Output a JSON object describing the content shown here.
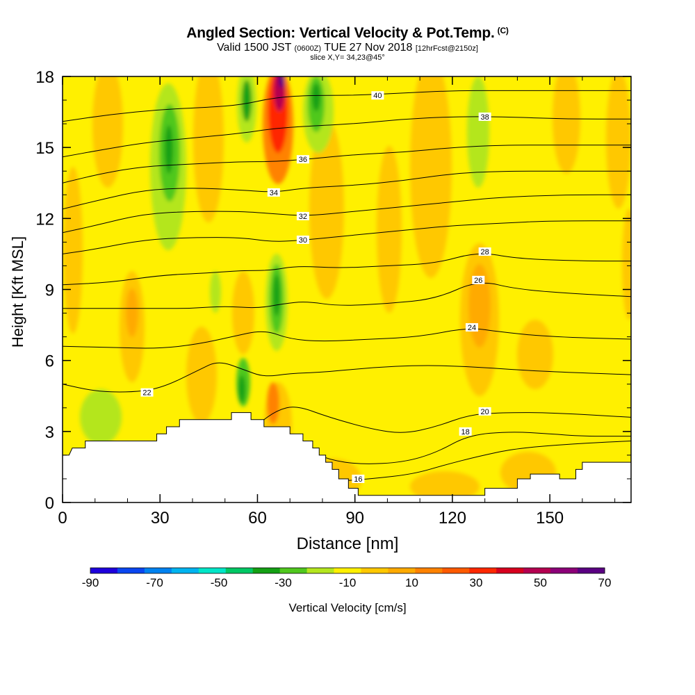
{
  "header": {
    "title": "Angled Section: Vertical Velocity & Pot.Temp.",
    "title_unit": "(C)",
    "valid_prefix": "Valid 1500 JST",
    "valid_zulu": "(0600Z)",
    "valid_date": "TUE 27 Nov 2018",
    "forecast": "[12hrFcst@2150z]",
    "slice": "slice X,Y= 34,23@45°"
  },
  "chart_data": {
    "type": "heatmap",
    "xlabel": "Distance [nm]",
    "ylabel": "Height [Kft MSL]",
    "xlim": [
      0,
      175
    ],
    "ylim": [
      0,
      18
    ],
    "x_ticks": [
      0,
      30,
      60,
      90,
      120,
      150
    ],
    "y_ticks": [
      0,
      3,
      6,
      9,
      12,
      15,
      18
    ],
    "terrain_kft": [
      [
        0,
        2
      ],
      [
        2,
        2
      ],
      [
        3,
        2.3
      ],
      [
        7,
        2.3
      ],
      [
        7,
        2.6
      ],
      [
        29,
        2.6
      ],
      [
        29,
        2.9
      ],
      [
        32,
        2.9
      ],
      [
        32,
        3.2
      ],
      [
        36,
        3.2
      ],
      [
        36,
        3.5
      ],
      [
        41,
        3.5
      ],
      [
        41,
        3.5
      ],
      [
        52,
        3.5
      ],
      [
        52,
        3.8
      ],
      [
        58,
        3.8
      ],
      [
        58,
        3.5
      ],
      [
        62,
        3.5
      ],
      [
        62,
        3.2
      ],
      [
        70,
        3.2
      ],
      [
        70,
        2.9
      ],
      [
        74,
        2.9
      ],
      [
        74,
        2.6
      ],
      [
        77,
        2.6
      ],
      [
        77,
        2.3
      ],
      [
        79,
        2.3
      ],
      [
        79,
        2
      ],
      [
        81,
        2
      ],
      [
        81,
        1.7
      ],
      [
        83,
        1.7
      ],
      [
        83,
        1.4
      ],
      [
        85,
        1.4
      ],
      [
        85,
        1
      ],
      [
        88,
        1
      ],
      [
        88,
        0.6
      ],
      [
        91,
        0.6
      ],
      [
        91,
        0.3
      ],
      [
        108,
        0.3
      ],
      [
        108,
        0.3
      ],
      [
        130,
        0.3
      ],
      [
        130,
        0.6
      ],
      [
        140,
        0.6
      ],
      [
        140,
        1
      ],
      [
        144,
        1
      ],
      [
        144,
        1.2
      ],
      [
        153,
        1.2
      ],
      [
        153,
        1
      ],
      [
        158,
        1
      ],
      [
        158,
        1.4
      ],
      [
        160,
        1.4
      ],
      [
        160,
        1.7
      ],
      [
        175,
        1.7
      ]
    ],
    "colorbar": {
      "label": "Vertical Velocity [cm/s]",
      "tick_labels": [
        "-90",
        "-70",
        "-50",
        "-30",
        "-10",
        "10",
        "30",
        "50",
        "70"
      ],
      "colors": [
        "#1e00dc",
        "#0a46f0",
        "#0082f0",
        "#00b4f0",
        "#00e6c8",
        "#00c864",
        "#14a014",
        "#50c81e",
        "#b4e61e",
        "#fff000",
        "#ffc800",
        "#ffaa00",
        "#ff8200",
        "#ff5a00",
        "#ff2800",
        "#d7001e",
        "#b40050",
        "#8c0078",
        "#5a0082"
      ]
    },
    "theta_contours": [
      {
        "label": "16",
        "pts": [
          [
            78,
            0.9
          ],
          [
            85,
            0.9
          ],
          [
            95,
            1.0
          ],
          [
            108,
            1.2
          ],
          [
            118,
            1.6
          ],
          [
            128,
            1.95
          ],
          [
            140,
            2.3
          ],
          [
            160,
            2.5
          ],
          [
            175,
            2.6
          ]
        ],
        "label_at": [
          91,
          1.0
        ]
      },
      {
        "label": "18",
        "pts": [
          [
            62,
            2.7
          ],
          [
            68,
            2.5
          ],
          [
            74,
            2.3
          ],
          [
            82,
            1.8
          ],
          [
            92,
            1.6
          ],
          [
            105,
            1.7
          ],
          [
            115,
            2.1
          ],
          [
            125,
            2.85
          ],
          [
            138,
            3.0
          ],
          [
            150,
            2.9
          ],
          [
            160,
            2.8
          ],
          [
            175,
            2.8
          ]
        ],
        "label_at": [
          124,
          3.0
        ]
      },
      {
        "label": "20",
        "pts": [
          [
            60,
            3.3
          ],
          [
            66,
            3.9
          ],
          [
            72,
            4.1
          ],
          [
            82,
            3.6
          ],
          [
            95,
            3.1
          ],
          [
            105,
            2.9
          ],
          [
            115,
            3.2
          ],
          [
            125,
            3.7
          ],
          [
            135,
            3.8
          ],
          [
            150,
            3.8
          ],
          [
            175,
            3.6
          ]
        ],
        "label_at": [
          130,
          3.85
        ]
      },
      {
        "label": "22",
        "pts": [
          [
            0,
            5.0
          ],
          [
            10,
            4.7
          ],
          [
            20,
            4.65
          ],
          [
            30,
            4.8
          ],
          [
            42,
            5.6
          ],
          [
            48,
            6.0
          ],
          [
            56,
            5.6
          ],
          [
            62,
            5.3
          ],
          [
            70,
            5.45
          ],
          [
            80,
            5.5
          ],
          [
            95,
            5.7
          ],
          [
            110,
            5.8
          ],
          [
            125,
            5.75
          ],
          [
            140,
            5.6
          ],
          [
            155,
            5.5
          ],
          [
            175,
            5.4
          ]
        ],
        "label_at": [
          26,
          4.65
        ]
      },
      {
        "label": "24",
        "pts": [
          [
            0,
            6.6
          ],
          [
            15,
            6.55
          ],
          [
            30,
            6.5
          ],
          [
            42,
            6.7
          ],
          [
            52,
            7.0
          ],
          [
            62,
            7.3
          ],
          [
            70,
            6.9
          ],
          [
            80,
            6.8
          ],
          [
            95,
            6.9
          ],
          [
            110,
            7.0
          ],
          [
            125,
            7.4
          ],
          [
            135,
            7.2
          ],
          [
            150,
            7.0
          ],
          [
            175,
            6.9
          ]
        ],
        "label_at": [
          126,
          7.4
        ]
      },
      {
        "label": "26",
        "pts": [
          [
            0,
            8.2
          ],
          [
            15,
            8.2
          ],
          [
            30,
            8.2
          ],
          [
            40,
            8.2
          ],
          [
            50,
            8.3
          ],
          [
            60,
            8.2
          ],
          [
            68,
            8.4
          ],
          [
            75,
            8.5
          ],
          [
            85,
            8.3
          ],
          [
            100,
            8.4
          ],
          [
            115,
            8.6
          ],
          [
            128,
            9.4
          ],
          [
            140,
            9.0
          ],
          [
            160,
            8.8
          ],
          [
            175,
            8.7
          ]
        ],
        "label_at": [
          128,
          9.4
        ]
      },
      {
        "label": "28",
        "pts": [
          [
            0,
            9.2
          ],
          [
            15,
            9.3
          ],
          [
            30,
            9.6
          ],
          [
            45,
            9.7
          ],
          [
            55,
            9.8
          ],
          [
            64,
            9.8
          ],
          [
            72,
            10.0
          ],
          [
            85,
            9.9
          ],
          [
            100,
            10.0
          ],
          [
            115,
            10.1
          ],
          [
            128,
            10.6
          ],
          [
            140,
            10.3
          ],
          [
            160,
            10.2
          ],
          [
            175,
            10.2
          ]
        ],
        "label_at": [
          130,
          10.6
        ]
      },
      {
        "label": "30",
        "pts": [
          [
            0,
            10.5
          ],
          [
            10,
            10.7
          ],
          [
            25,
            11.1
          ],
          [
            40,
            11.2
          ],
          [
            55,
            11.2
          ],
          [
            65,
            11.0
          ],
          [
            75,
            11.1
          ],
          [
            90,
            11.3
          ],
          [
            105,
            11.5
          ],
          [
            120,
            11.7
          ],
          [
            135,
            11.8
          ],
          [
            150,
            11.9
          ],
          [
            175,
            11.9
          ]
        ],
        "label_at": [
          74,
          11.1
        ]
      },
      {
        "label": "32",
        "pts": [
          [
            0,
            11.4
          ],
          [
            10,
            11.7
          ],
          [
            25,
            12.2
          ],
          [
            40,
            12.3
          ],
          [
            55,
            12.3
          ],
          [
            65,
            12.2
          ],
          [
            75,
            12.1
          ],
          [
            90,
            12.3
          ],
          [
            105,
            12.5
          ],
          [
            120,
            12.7
          ],
          [
            135,
            12.9
          ],
          [
            155,
            13.0
          ],
          [
            175,
            13.0
          ]
        ],
        "label_at": [
          74,
          12.1
        ]
      },
      {
        "label": "34",
        "pts": [
          [
            0,
            12.4
          ],
          [
            12,
            12.8
          ],
          [
            25,
            13.2
          ],
          [
            40,
            13.3
          ],
          [
            55,
            13.2
          ],
          [
            65,
            13.1
          ],
          [
            75,
            13.3
          ],
          [
            90,
            13.4
          ],
          [
            105,
            13.6
          ],
          [
            120,
            13.9
          ],
          [
            135,
            14.0
          ],
          [
            155,
            14.0
          ],
          [
            175,
            14.0
          ]
        ],
        "label_at": [
          65,
          13.1
        ]
      },
      {
        "label": "36",
        "pts": [
          [
            0,
            13.5
          ],
          [
            12,
            13.9
          ],
          [
            25,
            14.2
          ],
          [
            40,
            14.3
          ],
          [
            55,
            14.4
          ],
          [
            65,
            14.4
          ],
          [
            75,
            14.5
          ],
          [
            90,
            14.7
          ],
          [
            105,
            14.8
          ],
          [
            120,
            15.0
          ],
          [
            135,
            15.1
          ],
          [
            155,
            15.1
          ],
          [
            175,
            15.1
          ]
        ],
        "label_at": [
          74,
          14.5
        ]
      },
      {
        "label": "38",
        "pts": [
          [
            0,
            14.6
          ],
          [
            12,
            14.9
          ],
          [
            25,
            15.2
          ],
          [
            40,
            15.4
          ],
          [
            55,
            15.6
          ],
          [
            65,
            15.8
          ],
          [
            75,
            15.9
          ],
          [
            90,
            16.0
          ],
          [
            105,
            16.2
          ],
          [
            120,
            16.3
          ],
          [
            135,
            16.3
          ],
          [
            155,
            16.2
          ],
          [
            175,
            16.2
          ]
        ],
        "label_at": [
          130,
          16.3
        ]
      },
      {
        "label": "40",
        "pts": [
          [
            0,
            16.1
          ],
          [
            15,
            16.4
          ],
          [
            30,
            16.6
          ],
          [
            45,
            16.7
          ],
          [
            55,
            16.8
          ],
          [
            65,
            17.1
          ],
          [
            75,
            17.2
          ],
          [
            90,
            17.2
          ],
          [
            105,
            17.3
          ],
          [
            120,
            17.4
          ],
          [
            135,
            17.4
          ],
          [
            155,
            17.4
          ],
          [
            175,
            17.4
          ]
        ],
        "label_at": [
          97,
          17.2
        ]
      }
    ]
  }
}
